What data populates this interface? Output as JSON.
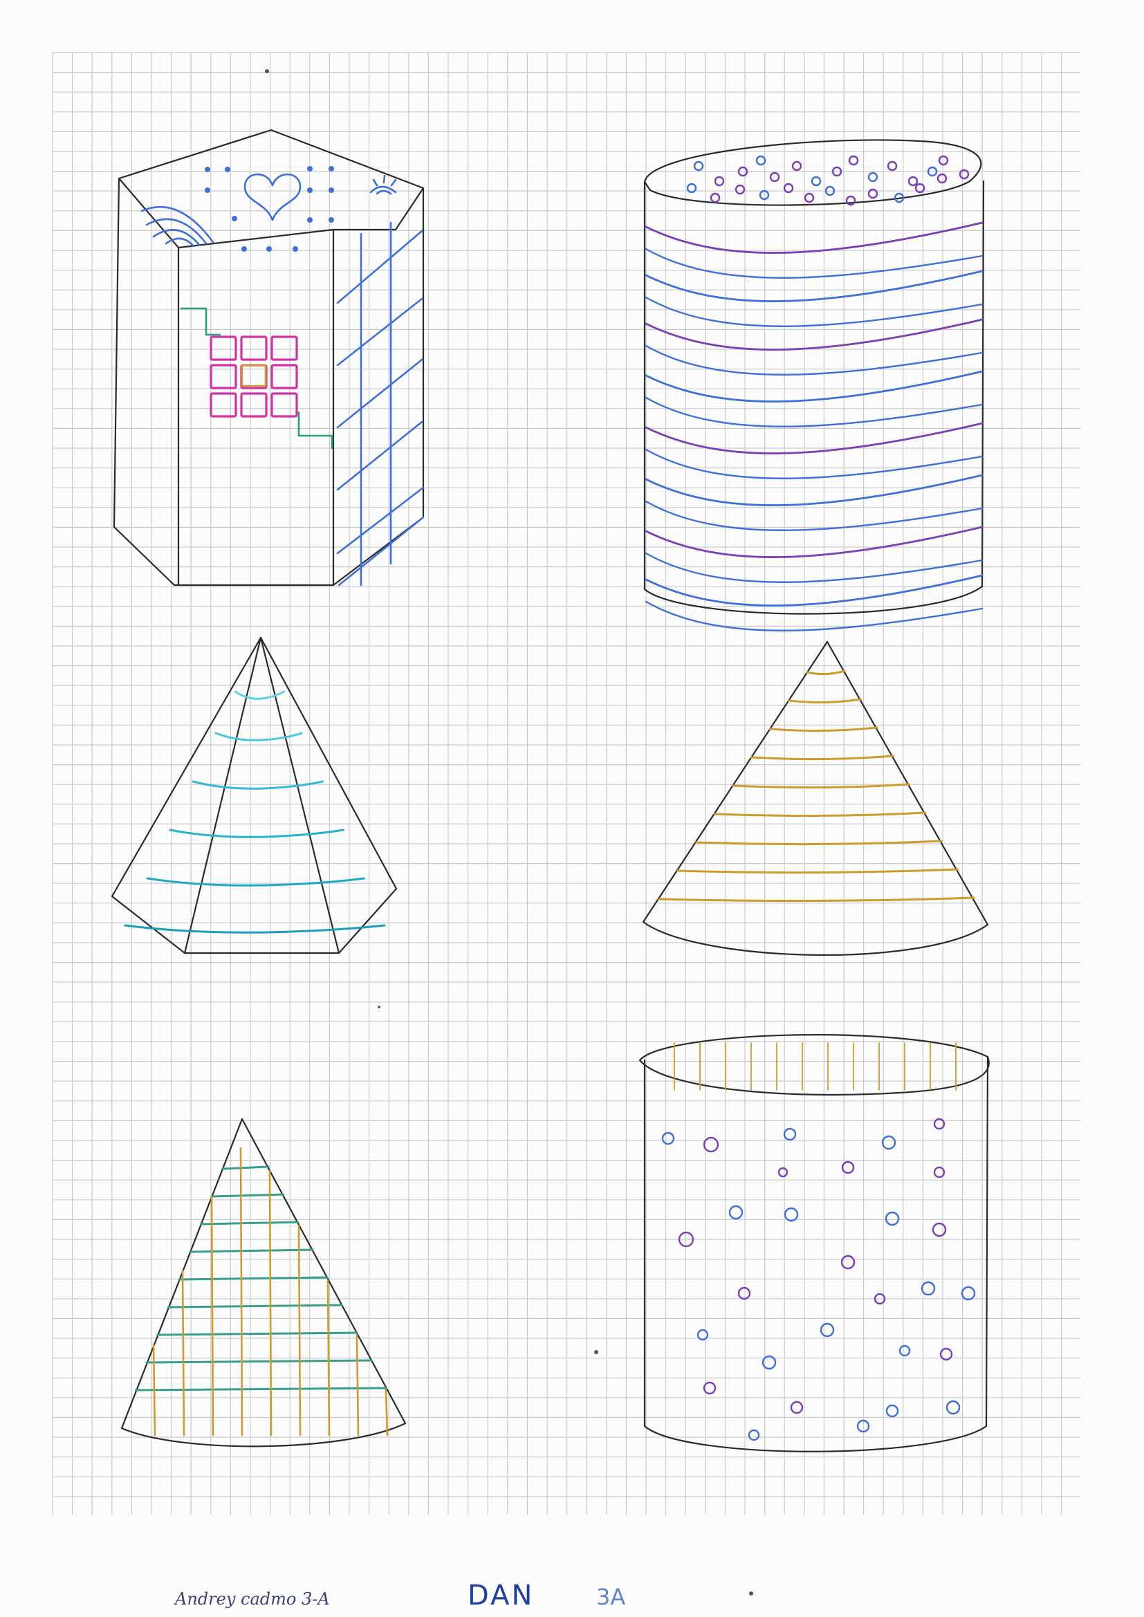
{
  "palette": {
    "grid_line": "#c9cacd",
    "ink_pencil": "#2b2b2e",
    "blue": "#3f6fd8",
    "violet": "#7a3fb5",
    "cyan": "#27b2cf",
    "magenta": "#d232a3",
    "green": "#2aa07a",
    "ochre": "#d09b2c",
    "teal": "#3a9d8c"
  },
  "shapes": [
    {
      "kind": "hexagonal-prism",
      "pattern": "heart, dots, arcs, squares, stripes"
    },
    {
      "kind": "cylinder",
      "pattern": "dots top, wavy stripes"
    },
    {
      "kind": "pyramid",
      "pattern": "horizontal bands"
    },
    {
      "kind": "cone",
      "pattern": "horizontal stripes"
    },
    {
      "kind": "cone",
      "pattern": "grid lines"
    },
    {
      "kind": "cylinder",
      "pattern": "circles"
    }
  ],
  "footer": {
    "name": "Andrey cadmo 3-A",
    "label": "DAN",
    "number": "3A"
  }
}
